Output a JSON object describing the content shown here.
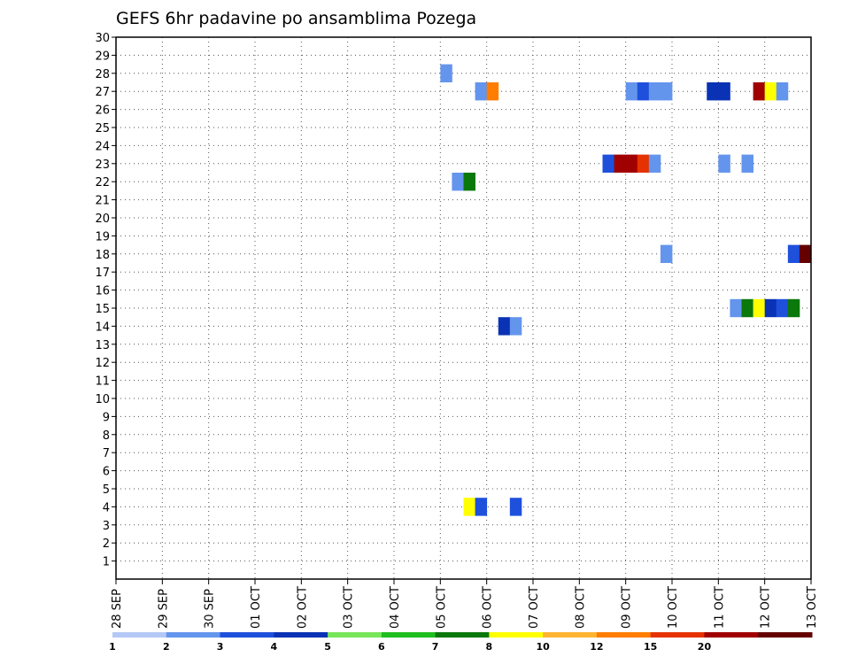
{
  "chart_data": {
    "type": "heatmap",
    "title": "GEFS 6hr padavine po ansamblima Pozega",
    "x_tick_labels": [
      "28 SEP",
      "29 SEP",
      "30 SEP",
      "01 OCT",
      "02 OCT",
      "03 OCT",
      "04 OCT",
      "05 OCT",
      "06 OCT",
      "07 OCT",
      "08 OCT",
      "09 OCT",
      "10 OCT",
      "11 OCT",
      "12 OCT",
      "13 OCT"
    ],
    "x_range_days": [
      0,
      15
    ],
    "y_range": [
      0,
      30
    ],
    "y_ticks": [
      1,
      2,
      3,
      4,
      5,
      6,
      7,
      8,
      9,
      10,
      11,
      12,
      13,
      14,
      15,
      16,
      17,
      18,
      19,
      20,
      21,
      22,
      23,
      24,
      25,
      26,
      27,
      28,
      29,
      30
    ],
    "grid": true,
    "colorbar": {
      "labels": [
        "1",
        "2",
        "3",
        "4",
        "5",
        "6",
        "7",
        "8",
        "10",
        "12",
        "15",
        "20"
      ],
      "colors": [
        "#b4c8f5",
        "#6495ed",
        "#1e50dc",
        "#0a32b4",
        "#78e65a",
        "#1ebe1e",
        "#0a780a",
        "#ffff00",
        "#ffb432",
        "#ff7d00",
        "#e63200",
        "#a00000",
        "#640000"
      ]
    },
    "cells": [
      {
        "member": 28,
        "t": 7.0,
        "level": 1
      },
      {
        "member": 27,
        "t": 7.75,
        "level": 1
      },
      {
        "member": 27,
        "t": 8.0,
        "level": 9
      },
      {
        "member": 27,
        "t": 11.0,
        "level": 1
      },
      {
        "member": 27,
        "t": 11.25,
        "level": 2
      },
      {
        "member": 27,
        "t": 11.5,
        "level": 1
      },
      {
        "member": 27,
        "t": 11.75,
        "level": 1
      },
      {
        "member": 27,
        "t": 12.75,
        "level": 3
      },
      {
        "member": 27,
        "t": 13.0,
        "level": 3
      },
      {
        "member": 27,
        "t": 13.75,
        "level": 11
      },
      {
        "member": 27,
        "t": 14.0,
        "level": 7
      },
      {
        "member": 27,
        "t": 14.25,
        "level": 1
      },
      {
        "member": 23,
        "t": 10.5,
        "level": 2
      },
      {
        "member": 23,
        "t": 10.75,
        "level": 11
      },
      {
        "member": 23,
        "t": 11.0,
        "level": 11
      },
      {
        "member": 23,
        "t": 11.25,
        "level": 10
      },
      {
        "member": 23,
        "t": 11.5,
        "level": 1
      },
      {
        "member": 23,
        "t": 13.0,
        "level": 1
      },
      {
        "member": 23,
        "t": 13.5,
        "level": 1
      },
      {
        "member": 22,
        "t": 7.25,
        "level": 1
      },
      {
        "member": 22,
        "t": 7.5,
        "level": 6
      },
      {
        "member": 18,
        "t": 11.75,
        "level": 1
      },
      {
        "member": 18,
        "t": 14.5,
        "level": 2
      },
      {
        "member": 18,
        "t": 14.75,
        "level": 12
      },
      {
        "member": 15,
        "t": 13.25,
        "level": 1
      },
      {
        "member": 15,
        "t": 13.5,
        "level": 6
      },
      {
        "member": 15,
        "t": 13.75,
        "level": 7
      },
      {
        "member": 15,
        "t": 14.0,
        "level": 3
      },
      {
        "member": 15,
        "t": 14.25,
        "level": 2
      },
      {
        "member": 15,
        "t": 14.5,
        "level": 6
      },
      {
        "member": 14,
        "t": 8.25,
        "level": 3
      },
      {
        "member": 14,
        "t": 8.5,
        "level": 1
      },
      {
        "member": 4,
        "t": 7.5,
        "level": 7
      },
      {
        "member": 4,
        "t": 7.75,
        "level": 2
      },
      {
        "member": 4,
        "t": 8.5,
        "level": 2
      }
    ]
  }
}
